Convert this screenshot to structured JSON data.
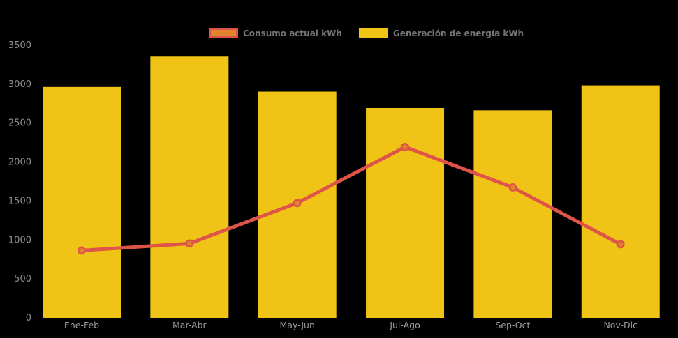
{
  "background_color": "#000000",
  "legend": {
    "items": [
      {
        "label": "Consumo actual kWh",
        "type": "line",
        "swatch_fill": "#E2842E",
        "swatch_border": "#DE5449"
      },
      {
        "label": "Generación de energía kWh",
        "type": "bar",
        "swatch_fill": "#F0C417",
        "swatch_border": "#F0C417"
      }
    ]
  },
  "axis": {
    "tick_color": "#8E8E8E",
    "xlabel_color": "#9A9A9A"
  },
  "chart_data": {
    "type": "bar",
    "subtype": "bar-line-combo",
    "title": "",
    "xlabel": "",
    "ylabel": "",
    "categories": [
      "Ene-Feb",
      "Mar-Abr",
      "May-Jun",
      "Jul-Ago",
      "Sep-Oct",
      "Nov-Dic"
    ],
    "series": [
      {
        "name": "Generación de energía kWh",
        "type": "bar",
        "color": "#F0C417",
        "values": [
          2960,
          3350,
          2900,
          2690,
          2660,
          2980
        ]
      },
      {
        "name": "Consumo actual kWh",
        "type": "line",
        "color": "#DE5449",
        "marker_fill": "#E2842E",
        "marker_border": "#DE5449",
        "values": [
          860,
          950,
          1470,
          2190,
          1670,
          940
        ]
      }
    ],
    "yticks": [
      0,
      500,
      1000,
      1500,
      2000,
      2500,
      3000,
      3500
    ],
    "ylim": [
      0,
      3500
    ],
    "grid": false,
    "legend_position": "top"
  }
}
